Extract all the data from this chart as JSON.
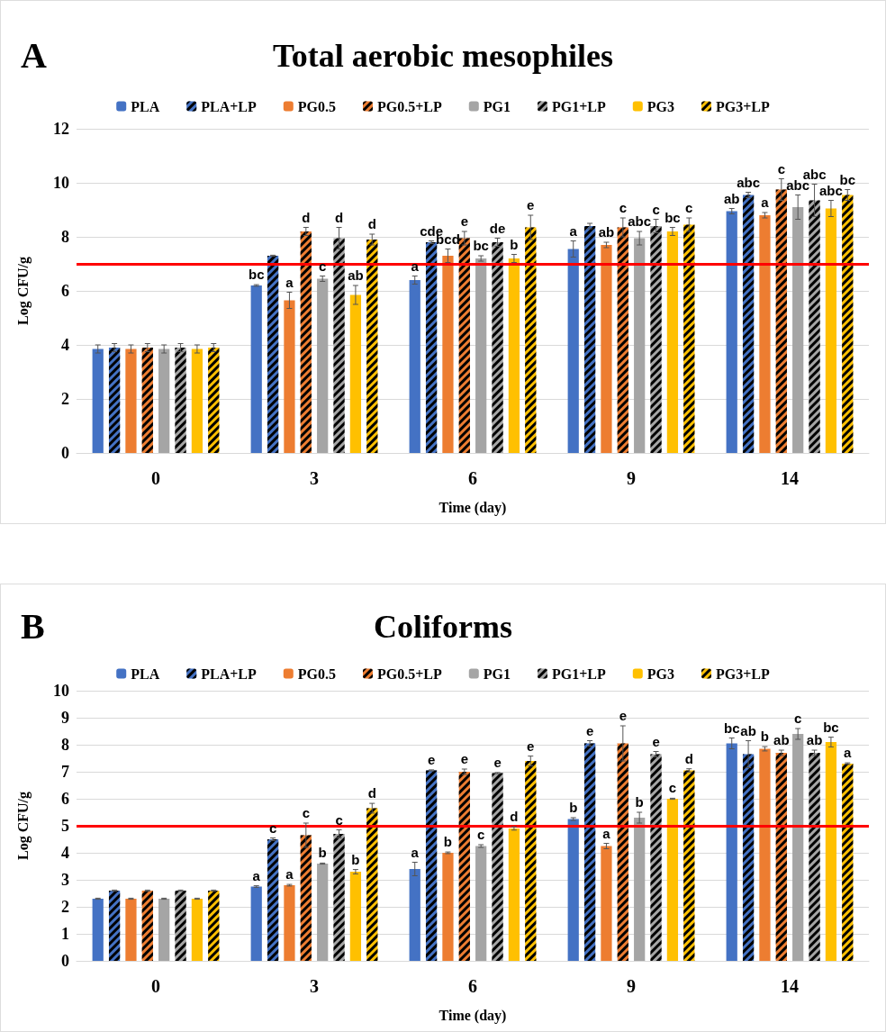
{
  "chart_data": [
    {
      "type": "bar",
      "title": "Total aerobic mesophiles",
      "annotations": [
        "A"
      ],
      "xlabel": "Time (day)",
      "ylabel": "Log CFU/g",
      "categories": [
        "0",
        "3",
        "6",
        "9",
        "14"
      ],
      "ylim": [
        0,
        12
      ],
      "yticks": [
        0,
        2,
        4,
        6,
        8,
        10,
        12
      ],
      "grid": "y",
      "legend": "top",
      "ref_lines": [
        {
          "axis": "y",
          "value": 7,
          "color": "#ff0000"
        }
      ],
      "series": [
        {
          "name": "PLA",
          "color": "#4472c4",
          "values": [
            3.85,
            6.2,
            6.4,
            7.55,
            8.95
          ],
          "errors": [
            0.15,
            0.03,
            0.15,
            0.3,
            0.1
          ],
          "value_labels": [
            null,
            "bc",
            "a",
            "a",
            "ab"
          ]
        },
        {
          "name": "PLA+LP",
          "color": "#4472c4",
          "values": [
            3.9,
            7.3,
            7.8,
            8.4,
            9.55
          ],
          "errors": [
            0.15,
            0.02,
            0.05,
            0.1,
            0.1
          ],
          "value_labels": [
            null,
            null,
            "cde",
            null,
            "abc"
          ]
        },
        {
          "name": "PG0.5",
          "color": "#ed7d31",
          "values": [
            3.85,
            5.65,
            7.3,
            7.7,
            8.8
          ],
          "errors": [
            0.15,
            0.3,
            0.25,
            0.1,
            0.1
          ],
          "value_labels": [
            null,
            "a",
            "bcd",
            "ab",
            "a"
          ]
        },
        {
          "name": "PG0.5+LP",
          "color": "#ed7d31",
          "values": [
            3.9,
            8.2,
            7.95,
            8.35,
            9.75
          ],
          "errors": [
            0.15,
            0.15,
            0.25,
            0.35,
            0.4
          ],
          "value_labels": [
            null,
            "d",
            "e",
            "c",
            "c"
          ]
        },
        {
          "name": "PG1",
          "color": "#a5a5a5",
          "values": [
            3.85,
            6.45,
            7.2,
            7.95,
            9.1
          ],
          "errors": [
            0.15,
            0.1,
            0.1,
            0.25,
            0.45
          ],
          "value_labels": [
            null,
            "c",
            "bc",
            "abc",
            "abc"
          ]
        },
        {
          "name": "PG1+LP",
          "color": "#a5a5a5",
          "values": [
            3.9,
            7.95,
            7.8,
            8.4,
            9.35
          ],
          "errors": [
            0.15,
            0.4,
            0.15,
            0.25,
            0.6
          ],
          "value_labels": [
            null,
            "d",
            "de",
            "c",
            "abc"
          ]
        },
        {
          "name": "PG3",
          "color": "#ffc000",
          "values": [
            3.85,
            5.85,
            7.2,
            8.2,
            9.05
          ],
          "errors": [
            0.15,
            0.35,
            0.15,
            0.15,
            0.3
          ],
          "value_labels": [
            null,
            "ab",
            "b",
            "bc",
            "abc"
          ]
        },
        {
          "name": "PG3+LP",
          "color": "#ffc000",
          "values": [
            3.9,
            7.9,
            8.35,
            8.45,
            9.55
          ],
          "errors": [
            0.15,
            0.2,
            0.45,
            0.25,
            0.2
          ],
          "value_labels": [
            null,
            "d",
            "e",
            "c",
            "bc"
          ]
        }
      ]
    },
    {
      "type": "bar",
      "title": "Coliforms",
      "annotations": [
        "B"
      ],
      "xlabel": "Time (day)",
      "ylabel": "Log CFU/g",
      "categories": [
        "0",
        "3",
        "6",
        "9",
        "14"
      ],
      "ylim": [
        0,
        10
      ],
      "yticks": [
        0,
        1,
        2,
        3,
        4,
        5,
        6,
        7,
        8,
        9,
        10
      ],
      "grid": "y",
      "legend": "top",
      "ref_lines": [
        {
          "axis": "y",
          "value": 5,
          "color": "#ff0000"
        }
      ],
      "series": [
        {
          "name": "PLA",
          "color": "#4472c4",
          "values": [
            2.3,
            2.75,
            3.4,
            5.25,
            8.05
          ],
          "errors": [
            0.02,
            0.03,
            0.25,
            0.05,
            0.2
          ],
          "value_labels": [
            null,
            "a",
            "a",
            "b",
            "bc"
          ]
        },
        {
          "name": "PLA+LP",
          "color": "#4472c4",
          "values": [
            2.6,
            4.5,
            7.05,
            8.05,
            7.65
          ],
          "errors": [
            0.02,
            0.05,
            0.02,
            0.1,
            0.5
          ],
          "value_labels": [
            null,
            "c",
            "e",
            "e",
            "ab"
          ]
        },
        {
          "name": "PG0.5",
          "color": "#ed7d31",
          "values": [
            2.3,
            2.8,
            4.0,
            4.25,
            7.85
          ],
          "errors": [
            0.02,
            0.03,
            0.03,
            0.1,
            0.08
          ],
          "value_labels": [
            null,
            "a",
            "b",
            "a",
            "b"
          ]
        },
        {
          "name": "PG0.5+LP",
          "color": "#ed7d31",
          "values": [
            2.6,
            4.65,
            7.0,
            8.05,
            7.7
          ],
          "errors": [
            0.02,
            0.45,
            0.1,
            0.65,
            0.1
          ],
          "value_labels": [
            null,
            "c",
            "e",
            "e",
            "ab"
          ]
        },
        {
          "name": "PG1",
          "color": "#a5a5a5",
          "values": [
            2.3,
            3.6,
            4.25,
            5.3,
            8.4
          ],
          "errors": [
            0.02,
            0.02,
            0.05,
            0.2,
            0.2
          ],
          "value_labels": [
            null,
            "b",
            "c",
            "b",
            "c"
          ]
        },
        {
          "name": "PG1+LP",
          "color": "#a5a5a5",
          "values": [
            2.6,
            4.7,
            6.95,
            7.65,
            7.7
          ],
          "errors": [
            0.02,
            0.15,
            0.02,
            0.1,
            0.1
          ],
          "value_labels": [
            null,
            "c",
            "e",
            "e",
            "ab"
          ]
        },
        {
          "name": "PG3",
          "color": "#ffc000",
          "values": [
            2.3,
            3.3,
            4.9,
            6.0,
            8.1
          ],
          "errors": [
            0.02,
            0.08,
            0.06,
            0.02,
            0.18
          ],
          "value_labels": [
            null,
            "b",
            "d",
            "c",
            "bc"
          ]
        },
        {
          "name": "PG3+LP",
          "color": "#ffc000",
          "values": [
            2.6,
            5.65,
            7.4,
            7.05,
            7.3
          ],
          "errors": [
            0.02,
            0.18,
            0.18,
            0.06,
            0.03
          ],
          "value_labels": [
            null,
            "d",
            "e",
            "d",
            "a"
          ]
        }
      ]
    }
  ]
}
